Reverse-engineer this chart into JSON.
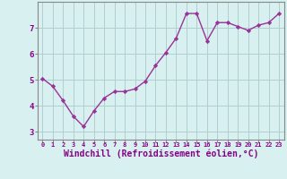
{
  "x": [
    0,
    1,
    2,
    3,
    4,
    5,
    6,
    7,
    8,
    9,
    10,
    11,
    12,
    13,
    14,
    15,
    16,
    17,
    18,
    19,
    20,
    21,
    22,
    23
  ],
  "y": [
    5.05,
    4.75,
    4.2,
    3.6,
    3.2,
    3.8,
    4.3,
    4.55,
    4.55,
    4.65,
    4.95,
    5.55,
    6.05,
    6.6,
    7.55,
    7.55,
    6.5,
    7.2,
    7.2,
    7.05,
    6.9,
    7.1,
    7.2,
    7.55
  ],
  "line_color": "#993399",
  "marker": "D",
  "marker_size": 2.2,
  "line_width": 1.0,
  "xlabel": "Windchill (Refroidissement éolien,°C)",
  "xlabel_fontsize": 7,
  "xtick_labels": [
    "0",
    "1",
    "2",
    "3",
    "4",
    "5",
    "6",
    "7",
    "8",
    "9",
    "10",
    "11",
    "12",
    "13",
    "14",
    "15",
    "16",
    "17",
    "18",
    "19",
    "20",
    "21",
    "22",
    "23"
  ],
  "ytick_values": [
    3,
    4,
    5,
    6,
    7
  ],
  "ylim": [
    2.7,
    8.0
  ],
  "xlim": [
    -0.5,
    23.5
  ],
  "bg_color": "#d8f0f0",
  "grid_color": "#b0cece",
  "spine_color": "#888888",
  "tick_color": "#880088",
  "label_color": "#880088"
}
